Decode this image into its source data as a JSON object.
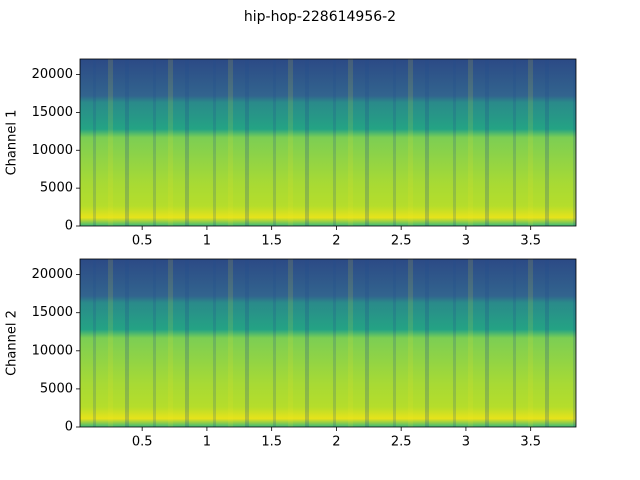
{
  "title": "hip-hop-228614956-2",
  "chart_data": [
    {
      "type": "spectrogram",
      "ylabel": "Channel 1",
      "xlim": [
        0.02,
        3.85
      ],
      "ylim": [
        0,
        22050
      ],
      "xticks": [
        0.5,
        1.0,
        1.5,
        2.0,
        2.5,
        3.0,
        3.5
      ],
      "yticks": [
        0,
        5000,
        10000,
        15000,
        20000
      ]
    },
    {
      "type": "spectrogram",
      "ylabel": "Channel 2",
      "xlim": [
        0.02,
        3.85
      ],
      "ylim": [
        0,
        22050
      ],
      "xticks": [
        0.5,
        1.0,
        1.5,
        2.0,
        2.5,
        3.0,
        3.5
      ],
      "yticks": [
        0,
        5000,
        10000,
        15000,
        20000
      ]
    }
  ]
}
